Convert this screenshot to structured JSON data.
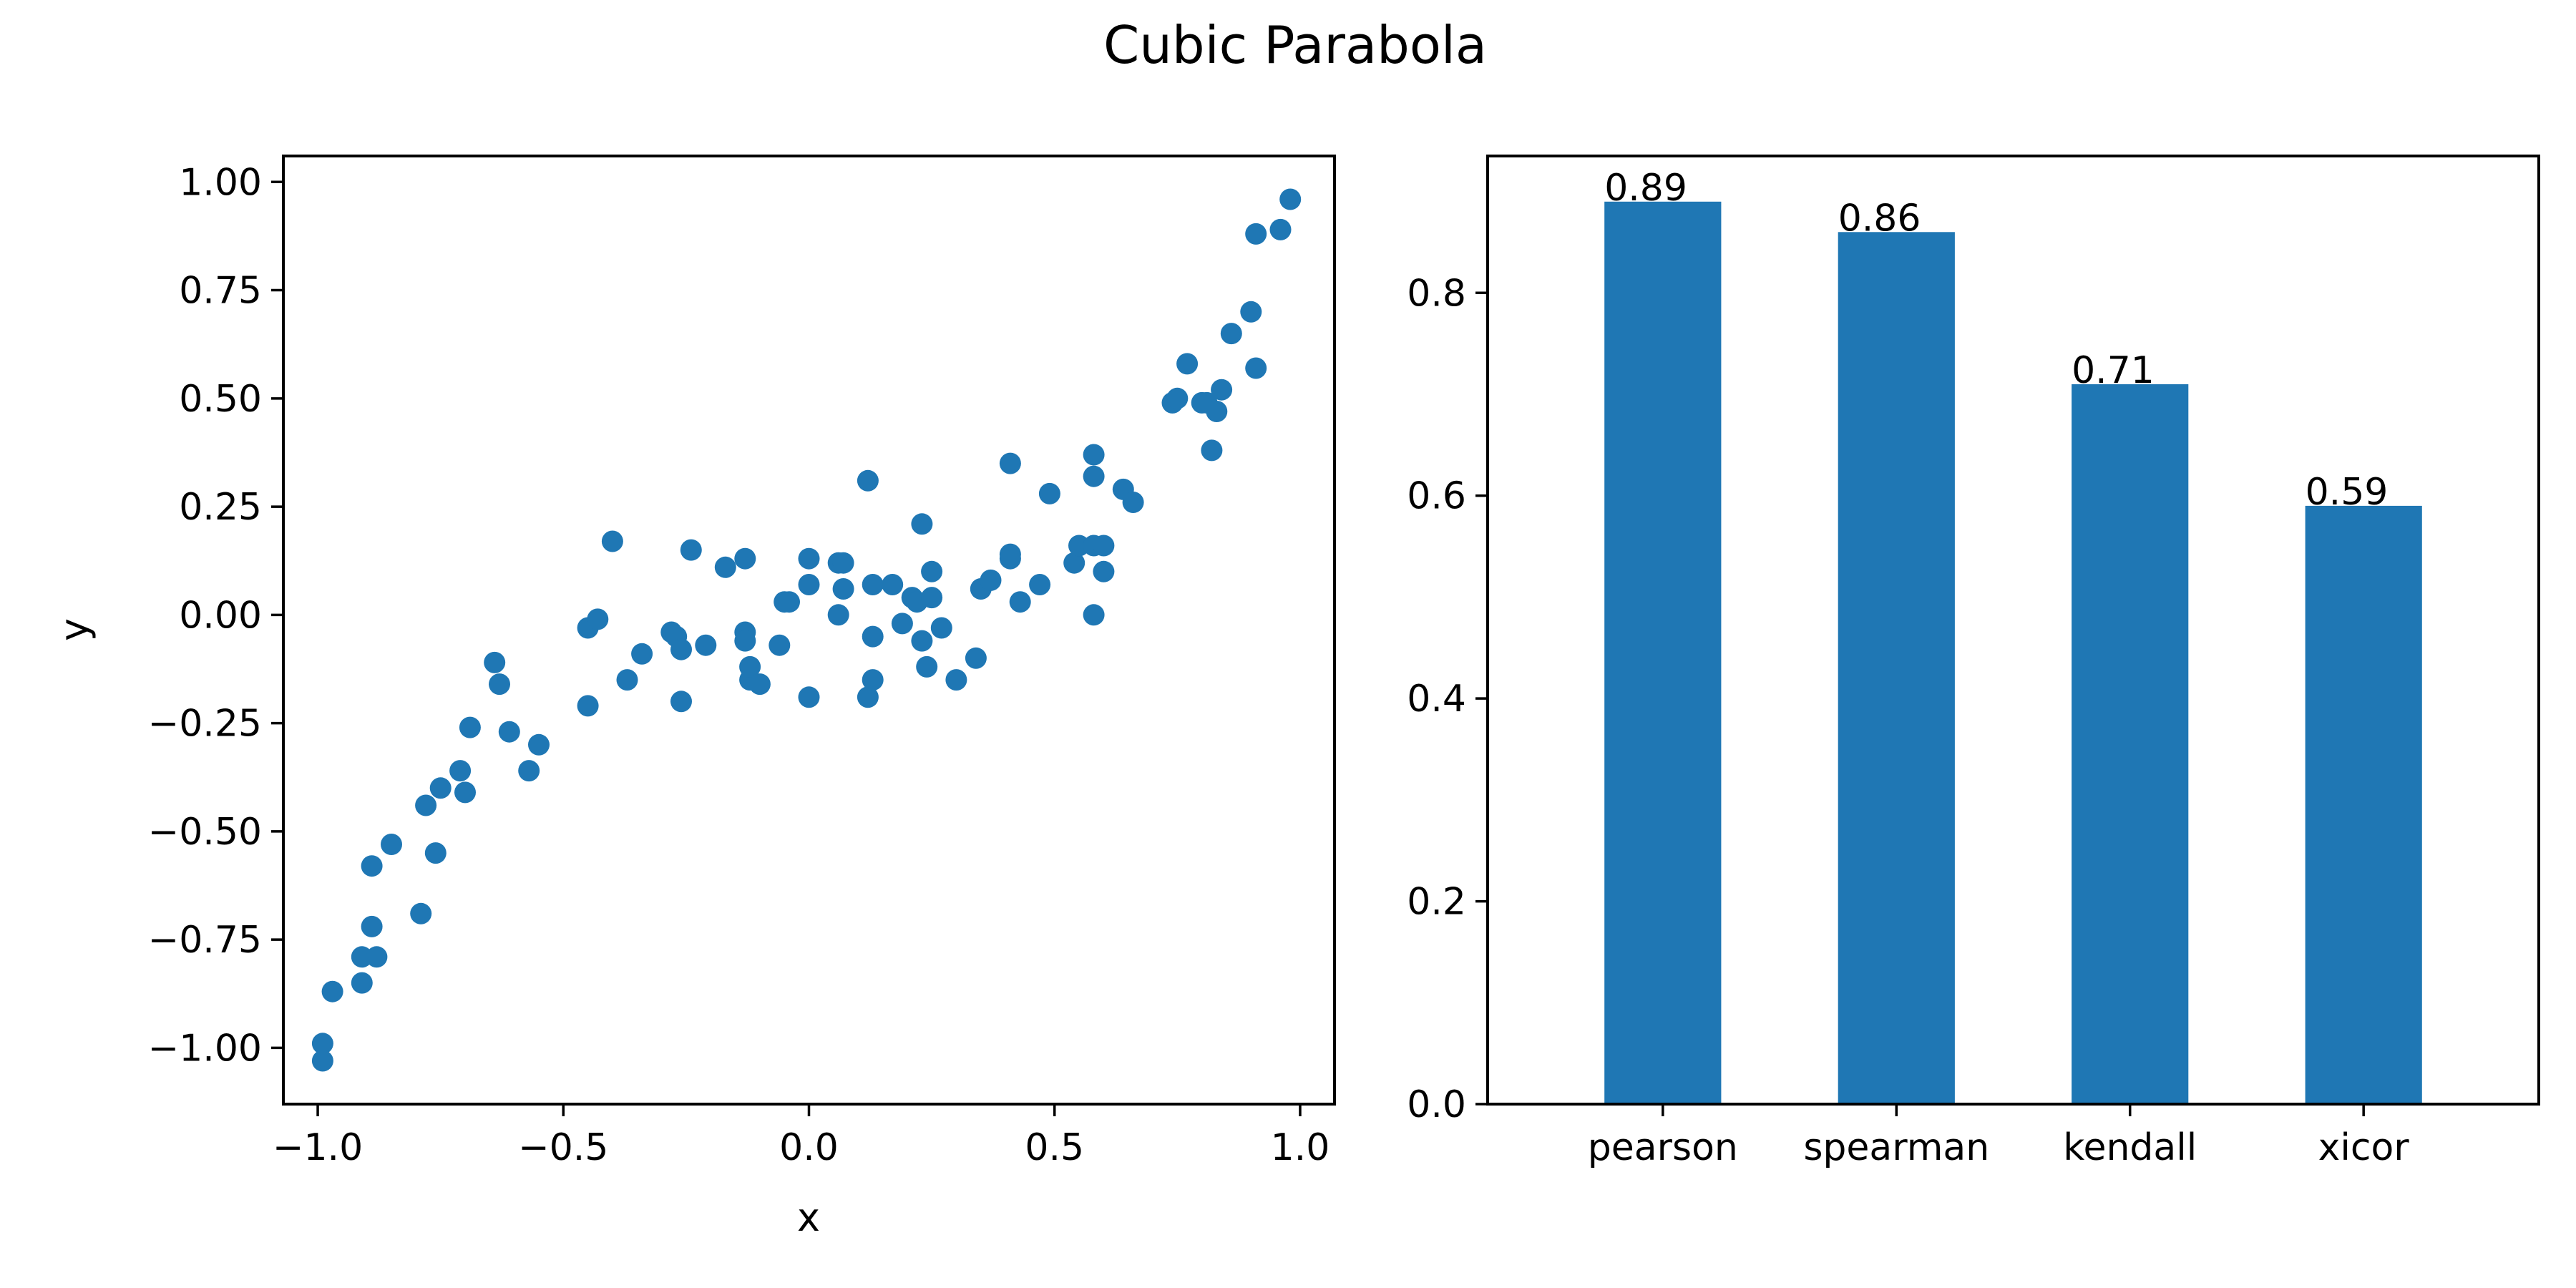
{
  "figure": {
    "title": "Cubic Parabola"
  },
  "chart_data": [
    {
      "type": "scatter",
      "title": "",
      "xlabel": "x",
      "ylabel": "y",
      "xlim": [
        -1.07,
        1.07
      ],
      "ylim": [
        -1.13,
        1.06
      ],
      "xticks": [
        -1.0,
        -0.5,
        0.0,
        0.5,
        1.0
      ],
      "xtick_labels": [
        "−1.0",
        "−0.5",
        "0.0",
        "0.5",
        "1.0"
      ],
      "yticks": [
        -1.0,
        -0.75,
        -0.5,
        -0.25,
        0.0,
        0.25,
        0.5,
        0.75,
        1.0
      ],
      "ytick_labels": [
        "−1.00",
        "−0.75",
        "−0.50",
        "−0.25",
        "0.00",
        "0.25",
        "0.50",
        "0.75",
        "1.00"
      ],
      "grid": false,
      "color": "#1f77b4",
      "points": [
        [
          -0.99,
          -0.99
        ],
        [
          -0.99,
          -1.03
        ],
        [
          -0.97,
          -0.87
        ],
        [
          -0.91,
          -0.85
        ],
        [
          -0.91,
          -0.79
        ],
        [
          -0.89,
          -0.58
        ],
        [
          -0.89,
          -0.72
        ],
        [
          -0.88,
          -0.79
        ],
        [
          -0.85,
          -0.53
        ],
        [
          -0.79,
          -0.69
        ],
        [
          -0.78,
          -0.44
        ],
        [
          -0.76,
          -0.55
        ],
        [
          -0.75,
          -0.4
        ],
        [
          -0.71,
          -0.36
        ],
        [
          -0.7,
          -0.41
        ],
        [
          -0.69,
          -0.26
        ],
        [
          -0.64,
          -0.11
        ],
        [
          -0.63,
          -0.16
        ],
        [
          -0.61,
          -0.27
        ],
        [
          -0.57,
          -0.36
        ],
        [
          -0.55,
          -0.3
        ],
        [
          -0.45,
          -0.03
        ],
        [
          -0.45,
          -0.21
        ],
        [
          -0.43,
          -0.01
        ],
        [
          -0.4,
          0.17
        ],
        [
          -0.37,
          -0.15
        ],
        [
          -0.34,
          -0.09
        ],
        [
          -0.28,
          -0.04
        ],
        [
          -0.27,
          -0.05
        ],
        [
          -0.26,
          -0.2
        ],
        [
          -0.26,
          -0.08
        ],
        [
          -0.24,
          0.15
        ],
        [
          -0.21,
          -0.07
        ],
        [
          -0.17,
          0.11
        ],
        [
          -0.13,
          0.13
        ],
        [
          -0.13,
          -0.04
        ],
        [
          -0.13,
          -0.06
        ],
        [
          -0.12,
          -0.15
        ],
        [
          -0.12,
          -0.12
        ],
        [
          -0.1,
          -0.16
        ],
        [
          -0.06,
          -0.07
        ],
        [
          -0.05,
          0.03
        ],
        [
          -0.04,
          0.03
        ],
        [
          0.0,
          0.07
        ],
        [
          0.0,
          0.13
        ],
        [
          0.0,
          -0.19
        ],
        [
          0.06,
          0.12
        ],
        [
          0.06,
          0.0
        ],
        [
          0.07,
          0.06
        ],
        [
          0.07,
          0.12
        ],
        [
          0.12,
          0.31
        ],
        [
          0.12,
          -0.19
        ],
        [
          0.13,
          -0.05
        ],
        [
          0.13,
          -0.15
        ],
        [
          0.13,
          0.07
        ],
        [
          0.17,
          0.07
        ],
        [
          0.19,
          -0.02
        ],
        [
          0.21,
          0.04
        ],
        [
          0.22,
          0.03
        ],
        [
          0.23,
          -0.06
        ],
        [
          0.23,
          0.21
        ],
        [
          0.24,
          -0.12
        ],
        [
          0.25,
          0.04
        ],
        [
          0.25,
          0.1
        ],
        [
          0.27,
          -0.03
        ],
        [
          0.3,
          -0.15
        ],
        [
          0.34,
          -0.1
        ],
        [
          0.35,
          0.06
        ],
        [
          0.37,
          0.08
        ],
        [
          0.41,
          0.35
        ],
        [
          0.41,
          0.13
        ],
        [
          0.41,
          0.14
        ],
        [
          0.43,
          0.03
        ],
        [
          0.47,
          0.07
        ],
        [
          0.49,
          0.28
        ],
        [
          0.54,
          0.12
        ],
        [
          0.55,
          0.16
        ],
        [
          0.58,
          0.37
        ],
        [
          0.58,
          0.32
        ],
        [
          0.58,
          0.0
        ],
        [
          0.58,
          0.16
        ],
        [
          0.6,
          0.1
        ],
        [
          0.6,
          0.16
        ],
        [
          0.64,
          0.29
        ],
        [
          0.66,
          0.26
        ],
        [
          0.74,
          0.49
        ],
        [
          0.75,
          0.5
        ],
        [
          0.77,
          0.58
        ],
        [
          0.8,
          0.49
        ],
        [
          0.81,
          0.49
        ],
        [
          0.82,
          0.38
        ],
        [
          0.83,
          0.47
        ],
        [
          0.84,
          0.52
        ],
        [
          0.86,
          0.65
        ],
        [
          0.9,
          0.7
        ],
        [
          0.91,
          0.57
        ],
        [
          0.91,
          0.88
        ],
        [
          0.96,
          0.89
        ],
        [
          0.98,
          0.96
        ]
      ]
    },
    {
      "type": "bar",
      "title": "",
      "xlabel": "",
      "ylabel": "",
      "categories": [
        "pearson",
        "spearman",
        "kendall",
        "xicor"
      ],
      "values": [
        0.89,
        0.86,
        0.71,
        0.59
      ],
      "value_labels": [
        "0.89",
        "0.86",
        "0.71",
        "0.59"
      ],
      "ylim": [
        0,
        0.935
      ],
      "yticks": [
        0.0,
        0.2,
        0.4,
        0.6,
        0.8
      ],
      "ytick_labels": [
        "0.0",
        "0.2",
        "0.4",
        "0.6",
        "0.8"
      ],
      "grid": false,
      "color": "#1f77b4"
    }
  ]
}
